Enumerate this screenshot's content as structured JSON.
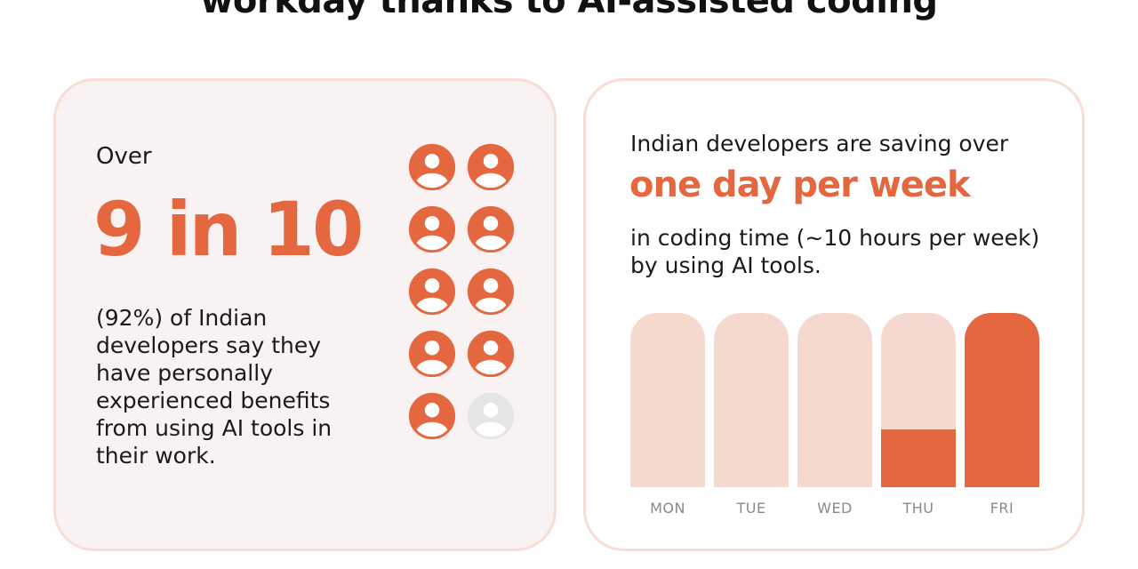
{
  "headline": "workday thanks to AI-assisted coding",
  "left_card": {
    "over": "Over",
    "stat": "9 in 10",
    "description": "(92%) of Indian developers say they have personally experienced benefits from using AI tools in their work.",
    "icons": {
      "icon": "person-icon",
      "total": 10,
      "highlighted": 9,
      "highlight_color": "#e5673f",
      "muted_color": "#e3e5e6"
    }
  },
  "right_card": {
    "intro": "Indian developers are saving over",
    "highlight": "one day per week",
    "description": "in coding time (~10 hours per week) by using AI tools.",
    "days": [
      {
        "label": "MON",
        "saved_fraction": 0
      },
      {
        "label": "TUE",
        "saved_fraction": 0
      },
      {
        "label": "WED",
        "saved_fraction": 0
      },
      {
        "label": "THU",
        "saved_fraction": 0.33
      },
      {
        "label": "FRI",
        "saved_fraction": 1
      }
    ]
  },
  "colors": {
    "accent": "#e5673f",
    "bar_background": "#f5d9cf",
    "card_border": "#f7ddd4",
    "left_card_background": "#f8f3f2"
  }
}
